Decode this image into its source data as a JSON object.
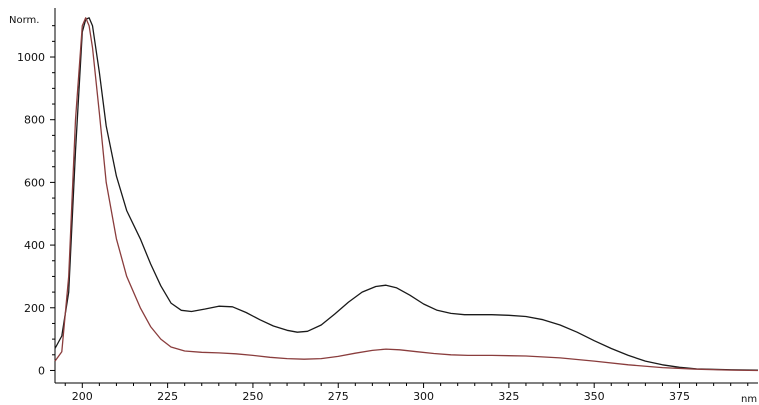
{
  "chart_data": {
    "type": "line",
    "title": "",
    "ylabel": "Norm.",
    "xlabel": "nm",
    "xlim": [
      192,
      398
    ],
    "ylim": [
      -40,
      1150
    ],
    "x_ticks": [
      200,
      225,
      250,
      275,
      300,
      325,
      350,
      375
    ],
    "y_ticks": [
      0,
      200,
      400,
      600,
      800,
      1000
    ],
    "grid": false,
    "legend": "none",
    "series": [
      {
        "color": "#1a1a1a",
        "points": [
          [
            192,
            70
          ],
          [
            194,
            110
          ],
          [
            196,
            250
          ],
          [
            198,
            700
          ],
          [
            200,
            1080
          ],
          [
            201,
            1120
          ],
          [
            202,
            1125
          ],
          [
            203,
            1100
          ],
          [
            205,
            950
          ],
          [
            207,
            780
          ],
          [
            210,
            620
          ],
          [
            213,
            510
          ],
          [
            217,
            420
          ],
          [
            220,
            340
          ],
          [
            223,
            270
          ],
          [
            226,
            215
          ],
          [
            229,
            192
          ],
          [
            232,
            188
          ],
          [
            236,
            196
          ],
          [
            240,
            205
          ],
          [
            244,
            203
          ],
          [
            248,
            185
          ],
          [
            252,
            162
          ],
          [
            256,
            142
          ],
          [
            260,
            128
          ],
          [
            263,
            122
          ],
          [
            266,
            125
          ],
          [
            270,
            145
          ],
          [
            274,
            180
          ],
          [
            278,
            218
          ],
          [
            282,
            250
          ],
          [
            286,
            268
          ],
          [
            289,
            272
          ],
          [
            292,
            264
          ],
          [
            296,
            240
          ],
          [
            300,
            212
          ],
          [
            304,
            192
          ],
          [
            308,
            182
          ],
          [
            312,
            178
          ],
          [
            316,
            178
          ],
          [
            320,
            178
          ],
          [
            325,
            176
          ],
          [
            330,
            172
          ],
          [
            335,
            162
          ],
          [
            340,
            145
          ],
          [
            345,
            122
          ],
          [
            350,
            95
          ],
          [
            355,
            70
          ],
          [
            360,
            48
          ],
          [
            365,
            30
          ],
          [
            370,
            18
          ],
          [
            375,
            10
          ],
          [
            380,
            5
          ],
          [
            390,
            2
          ],
          [
            398,
            1
          ]
        ]
      },
      {
        "color": "#8a3d3d",
        "points": [
          [
            192,
            30
          ],
          [
            194,
            60
          ],
          [
            196,
            300
          ],
          [
            198,
            800
          ],
          [
            200,
            1100
          ],
          [
            201,
            1125
          ],
          [
            202,
            1100
          ],
          [
            203,
            1030
          ],
          [
            205,
            820
          ],
          [
            207,
            600
          ],
          [
            210,
            420
          ],
          [
            213,
            300
          ],
          [
            217,
            200
          ],
          [
            220,
            140
          ],
          [
            223,
            100
          ],
          [
            226,
            75
          ],
          [
            230,
            62
          ],
          [
            235,
            58
          ],
          [
            240,
            56
          ],
          [
            245,
            53
          ],
          [
            250,
            48
          ],
          [
            255,
            42
          ],
          [
            260,
            38
          ],
          [
            265,
            36
          ],
          [
            270,
            38
          ],
          [
            275,
            45
          ],
          [
            280,
            55
          ],
          [
            285,
            64
          ],
          [
            289,
            68
          ],
          [
            293,
            66
          ],
          [
            298,
            60
          ],
          [
            303,
            54
          ],
          [
            308,
            50
          ],
          [
            313,
            48
          ],
          [
            320,
            48
          ],
          [
            330,
            46
          ],
          [
            340,
            40
          ],
          [
            350,
            30
          ],
          [
            360,
            18
          ],
          [
            370,
            9
          ],
          [
            380,
            4
          ],
          [
            390,
            1
          ],
          [
            398,
            0
          ]
        ]
      }
    ]
  }
}
